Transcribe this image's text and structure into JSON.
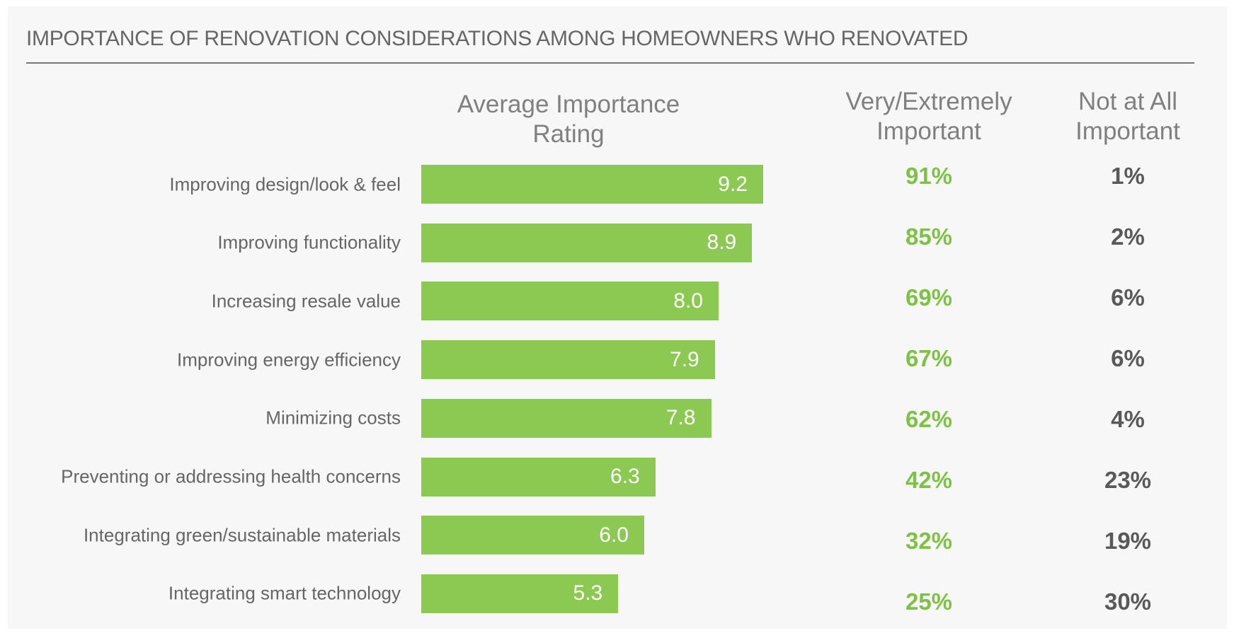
{
  "chart_data": {
    "type": "bar",
    "orientation": "horizontal",
    "title": "IMPORTANCE OF RENOVATION CONSIDERATIONS AMONG HOMEOWNERS WHO RENOVATED",
    "categories": [
      "Improving design/look & feel",
      "Improving functionality",
      "Increasing resale value",
      "Improving energy efficiency",
      "Minimizing costs",
      "Preventing or addressing health concerns",
      "Integrating green/sustainable materials",
      "Integrating smart technology"
    ],
    "series": [
      {
        "name": "Average Importance Rating",
        "color": "#8bc952",
        "values": [
          9.2,
          8.9,
          8.0,
          7.9,
          7.8,
          6.3,
          6.0,
          5.3
        ],
        "value_labels": [
          "9.2",
          "8.9",
          "8.0",
          "7.9",
          "7.8",
          "6.3",
          "6.0",
          "5.3"
        ]
      }
    ],
    "columns": [
      {
        "name": "Very/Extremely Important",
        "color": "#7dc242",
        "values": [
          91,
          85,
          69,
          67,
          62,
          42,
          32,
          25
        ],
        "value_labels": [
          "91%",
          "85%",
          "69%",
          "67%",
          "62%",
          "42%",
          "32%",
          "25%"
        ]
      },
      {
        "name": "Not at All Important",
        "color": "#595959",
        "values": [
          1,
          2,
          6,
          6,
          4,
          23,
          19,
          30
        ],
        "value_labels": [
          "1%",
          "2%",
          "6%",
          "6%",
          "4%",
          "23%",
          "19%",
          "30%"
        ]
      }
    ]
  }
}
